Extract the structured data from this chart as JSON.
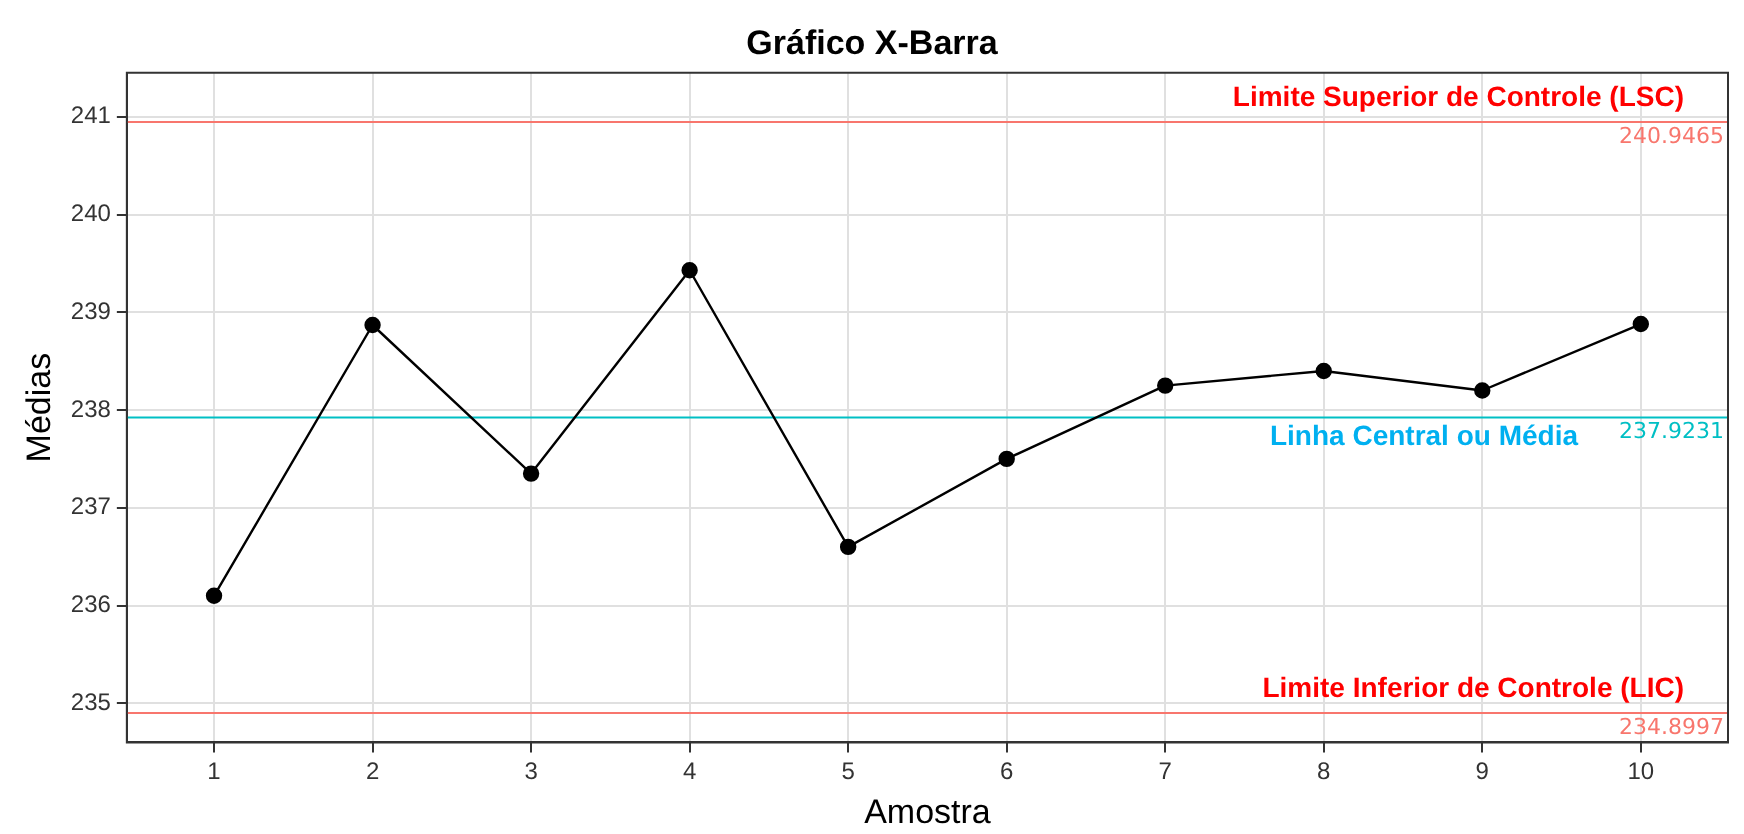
{
  "chart_data": {
    "type": "line",
    "title": "Gráfico X-Barra",
    "xlabel": "Amostra",
    "ylabel": "Médias",
    "x": [
      1,
      2,
      3,
      4,
      5,
      6,
      7,
      8,
      9,
      10
    ],
    "series": [
      {
        "color": "#000000",
        "values": [
          236.1,
          238.87,
          237.35,
          239.43,
          236.6,
          237.5,
          238.25,
          238.4,
          238.2,
          238.88
        ]
      }
    ],
    "xlim": [
      0.45,
      10.55
    ],
    "xticks": [
      1,
      2,
      3,
      4,
      5,
      6,
      7,
      8,
      9,
      10
    ],
    "ylim": [
      234.6,
      241.45
    ],
    "yticks": [
      235,
      236,
      237,
      238,
      239,
      240,
      241
    ],
    "ref_lines": [
      {
        "axis": "y",
        "value": 240.9465,
        "label": "240.9465",
        "color": "#f8766d"
      },
      {
        "axis": "y",
        "value": 237.9231,
        "label": "237.9231",
        "color": "#00bfc4"
      },
      {
        "axis": "y",
        "value": 234.8997,
        "label": "234.8997",
        "color": "#f8766d"
      }
    ],
    "annotations": [
      "Limite Superior de Controle (LSC)",
      "Linha Central ou Média",
      "Limite Inferior de Controle (LIC)"
    ],
    "grid": true,
    "legend": false,
    "marker": "circle",
    "line_style": "solid"
  }
}
